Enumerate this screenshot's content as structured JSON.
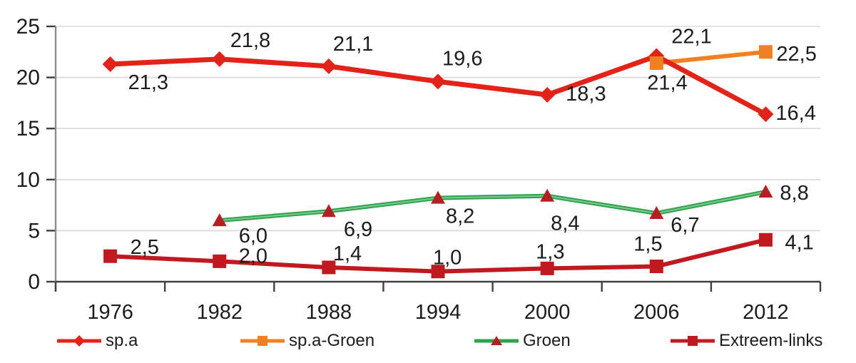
{
  "figure": {
    "background": "#ffffff"
  },
  "chart_data": {
    "type": "line",
    "categories": [
      "1976",
      "1982",
      "1988",
      "1994",
      "2000",
      "2006",
      "2012"
    ],
    "ylim": [
      0,
      25
    ],
    "yticks": [
      0,
      5,
      10,
      15,
      20,
      25
    ],
    "ytick_labels": [
      "0",
      "5",
      "10",
      "15",
      "20",
      "25"
    ],
    "grid": true,
    "legend_position": "bottom",
    "style": {
      "grid_color": "#d9d9d9",
      "x_axis_color": "#404040",
      "y_axis_color": "#8c8c8c",
      "tick_color": "#404040",
      "label_color": "#1c1c1c"
    },
    "series": [
      {
        "name": "sp.a",
        "color": "#e2231a",
        "marker": "diamond",
        "values": [
          21.3,
          21.8,
          21.1,
          19.6,
          18.3,
          22.1,
          16.4
        ],
        "labels": [
          "21,3",
          "21,8",
          "21,1",
          "19,6",
          "18,3",
          "22,1",
          "16,4"
        ],
        "label_offsets": [
          [
            25,
            35
          ],
          [
            15,
            -17
          ],
          [
            6,
            -22
          ],
          [
            6,
            -23
          ],
          [
            26,
            8
          ],
          [
            21,
            -18
          ],
          [
            14,
            8
          ]
        ]
      },
      {
        "name": "sp.a-Groen",
        "color": "#ef8023",
        "marker": "square",
        "values": [
          null,
          null,
          null,
          null,
          null,
          21.4,
          22.5
        ],
        "labels": [
          null,
          null,
          null,
          null,
          null,
          "21,4",
          "22,5"
        ],
        "label_offsets": [
          null,
          null,
          null,
          null,
          null,
          [
            -13,
            37
          ],
          [
            15,
            12
          ]
        ]
      },
      {
        "name": "Groen",
        "color": "#2fa24c",
        "highlight_color": "#7cc890",
        "marker": "triangle",
        "marker_color": "#b41f24",
        "values": [
          null,
          6.0,
          6.9,
          8.2,
          8.4,
          6.7,
          8.8
        ],
        "labels": [
          null,
          "6,0",
          "6,9",
          "8,2",
          "8,4",
          "6,7",
          "8,8"
        ],
        "label_offsets": [
          null,
          [
            27,
            31
          ],
          [
            21,
            35
          ],
          [
            11,
            35
          ],
          [
            5,
            48
          ],
          [
            20,
            26
          ],
          [
            20,
            11
          ]
        ]
      },
      {
        "name": "Extreem-links",
        "color": "#c01a20",
        "marker": "square",
        "values": [
          2.5,
          2.0,
          1.4,
          1.0,
          1.3,
          1.5,
          4.1
        ],
        "labels": [
          "2,5",
          "2,0",
          "1,4",
          "1,0",
          "1,3",
          "1,5",
          "4,1"
        ],
        "label_offsets": [
          [
            28,
            -3
          ],
          [
            27,
            2
          ],
          [
            6,
            -10
          ],
          [
            -7,
            -10
          ],
          [
            -16,
            -14
          ],
          [
            -32,
            -22
          ],
          [
            27,
            13
          ]
        ]
      }
    ]
  }
}
